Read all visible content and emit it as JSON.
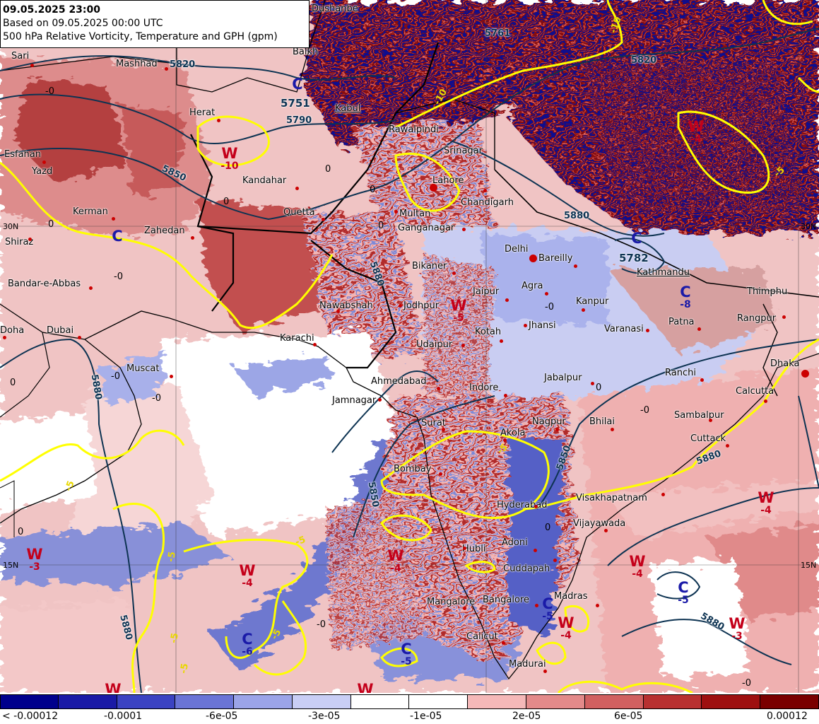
{
  "header": {
    "valid_time": "09.05.2025 23:00",
    "based_on": "Based on 09.05.2025 00:00 UTC",
    "product": "500 hPa Relative Vorticity, Temperature and GPH (gpm)"
  },
  "cities": [
    {
      "name": "Dushanbe"
    },
    {
      "name": "Sari"
    },
    {
      "name": "Mashhad"
    },
    {
      "name": "Balkh"
    },
    {
      "name": "Herat"
    },
    {
      "name": "Kabul"
    },
    {
      "name": "Rawalpindi"
    },
    {
      "name": "Srinagar"
    },
    {
      "name": "Esfahan"
    },
    {
      "name": "Yazd"
    },
    {
      "name": "Kandahar"
    },
    {
      "name": "Lahore"
    },
    {
      "name": "Chandigarh"
    },
    {
      "name": "Kerman"
    },
    {
      "name": "Quetta"
    },
    {
      "name": "Multan"
    },
    {
      "name": "Zahedan"
    },
    {
      "name": "Ganganagar"
    },
    {
      "name": "Shiraz"
    },
    {
      "name": "Delhi"
    },
    {
      "name": "Bareilly"
    },
    {
      "name": "Bikaner"
    },
    {
      "name": "Kathmandu"
    },
    {
      "name": "Bandar-e-Abbas"
    },
    {
      "name": "Agra"
    },
    {
      "name": "Jaipur"
    },
    {
      "name": "Kanpur"
    },
    {
      "name": "Thimphu"
    },
    {
      "name": "Nawabshah"
    },
    {
      "name": "Jodhpur"
    },
    {
      "name": "Patna"
    },
    {
      "name": "Doha"
    },
    {
      "name": "Dubai"
    },
    {
      "name": "Jhansi"
    },
    {
      "name": "Varanasi"
    },
    {
      "name": "Rangpur"
    },
    {
      "name": "Kotah"
    },
    {
      "name": "Karachi"
    },
    {
      "name": "Udaipur"
    },
    {
      "name": "Dhaka"
    },
    {
      "name": "Muscat"
    },
    {
      "name": "Ranchi"
    },
    {
      "name": "Ahmedabad"
    },
    {
      "name": "Jabalpur"
    },
    {
      "name": "Indore"
    },
    {
      "name": "Calcutta"
    },
    {
      "name": "Jamnagar"
    },
    {
      "name": "Surat"
    },
    {
      "name": "Akola"
    },
    {
      "name": "Nagpur"
    },
    {
      "name": "Bhilai"
    },
    {
      "name": "Sambalpur"
    },
    {
      "name": "Cuttack"
    },
    {
      "name": "Bombay"
    },
    {
      "name": "Hyderabad"
    },
    {
      "name": "Visakhapatnam"
    },
    {
      "name": "Vijayawada"
    },
    {
      "name": "Hubli"
    },
    {
      "name": "Adoni"
    },
    {
      "name": "Cuddapah"
    },
    {
      "name": "Mangalore"
    },
    {
      "name": "Bangalore"
    },
    {
      "name": "Madras"
    },
    {
      "name": "Calicut"
    },
    {
      "name": "Madurai"
    }
  ],
  "pressure_systems": [
    {
      "type": "W",
      "value": "-10"
    },
    {
      "type": "W",
      "value": "-4"
    },
    {
      "type": "W",
      "value": "-5"
    },
    {
      "type": "W",
      "value": "-4"
    },
    {
      "type": "W",
      "value": "-4"
    },
    {
      "type": "W",
      "value": "-4"
    },
    {
      "type": "W",
      "value": "-3"
    },
    {
      "type": "W",
      "value": "-4"
    },
    {
      "type": "W",
      "value": "-4"
    },
    {
      "type": "W",
      "value": "-3"
    },
    {
      "type": "W",
      "value": ""
    },
    {
      "type": "W",
      "value": ""
    },
    {
      "type": "C",
      "value": ""
    },
    {
      "type": "C",
      "value": ""
    },
    {
      "type": "C",
      "value": ""
    },
    {
      "type": "C",
      "value": "-8"
    },
    {
      "type": "C",
      "value": "-5"
    },
    {
      "type": "C",
      "value": "-5"
    },
    {
      "type": "C",
      "value": "-6"
    },
    {
      "type": "C",
      "value": "-5"
    }
  ],
  "gph_labels": [
    "5751",
    "5790",
    "5820",
    "5850",
    "5782",
    "5820",
    "5761",
    "5850",
    "5880",
    "5850",
    "5880",
    "5880",
    "5880",
    "5880",
    "5880"
  ],
  "temp_labels": [
    "-10",
    "-10",
    "-5",
    "-5",
    "-5",
    "-5",
    "-5",
    "-5",
    "-5",
    "-5"
  ],
  "zero_labels": [
    "-0",
    "0",
    "0",
    "-0",
    "0",
    "-0",
    "0",
    "0",
    "-0",
    "0",
    "-0",
    "0",
    "-0",
    "0",
    "-0",
    "-0",
    "0"
  ],
  "lat_labels": [
    "30N",
    "30N",
    "15N",
    "15N"
  ],
  "legend": {
    "colors": [
      "#00008c",
      "#1a1aa6",
      "#3b43c2",
      "#6a74d6",
      "#9ba4e8",
      "#c9cef5",
      "#ffffff",
      "#ffffff",
      "#f5b8b8",
      "#e38a8a",
      "#d16060",
      "#b83030",
      "#9e1010",
      "#7a0000"
    ],
    "ticks": [
      "< -0.00012",
      "-0.0001",
      "-6e-05",
      "-3e-05",
      "-1e-05",
      "2e-05",
      "6e-05",
      "0.00012"
    ]
  }
}
